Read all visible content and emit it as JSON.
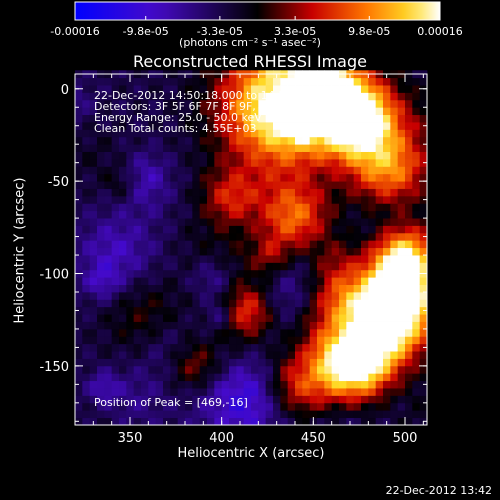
{
  "colorbar": {
    "ticks": [
      "-0.00016",
      "-9.8e-05",
      "-3.3e-05",
      "3.3e-05",
      "9.8e-05",
      "0.00016"
    ],
    "tick_values": [
      -0.00016,
      -9.8e-05,
      -3.3e-05,
      3.3e-05,
      9.8e-05,
      0.00016
    ],
    "range": [
      -0.00016,
      0.00016
    ],
    "unit": "(photons cm⁻² s⁻¹ asec⁻²)"
  },
  "annotations": {
    "time": "22-Dec-2012 14:50:18.000 to 14:55:06.000",
    "detectors": "Detectors: 3F 5F 6F 7F 8F 9F, Att 0",
    "energy": "Energy Range: 25.0 - 50.0 keV",
    "clean": "Clean    Total counts: 4.55E+03",
    "peak": "Position of Peak = [469,-16]"
  },
  "footer": {
    "timestamp": "22-Dec-2012 13:42"
  },
  "colors": {
    "dark_purple": "#3a0d6e",
    "blue": "#3a3ad8",
    "red": "#d01010",
    "orange": "#ff8c00",
    "yellow": "#ffd700"
  },
  "chart_data": {
    "type": "heatmap",
    "title": "Reconstructed RHESSI Image",
    "xlabel": "Heliocentric X (arcsec)",
    "ylabel": "Heliocentric Y (arcsec)",
    "xlim": [
      320,
      512
    ],
    "ylim": [
      -182,
      8
    ],
    "xticks": [
      350,
      400,
      450,
      500
    ],
    "yticks": [
      0,
      -50,
      -100,
      -150
    ],
    "peak": [
      469,
      -16
    ],
    "grid": false
  }
}
